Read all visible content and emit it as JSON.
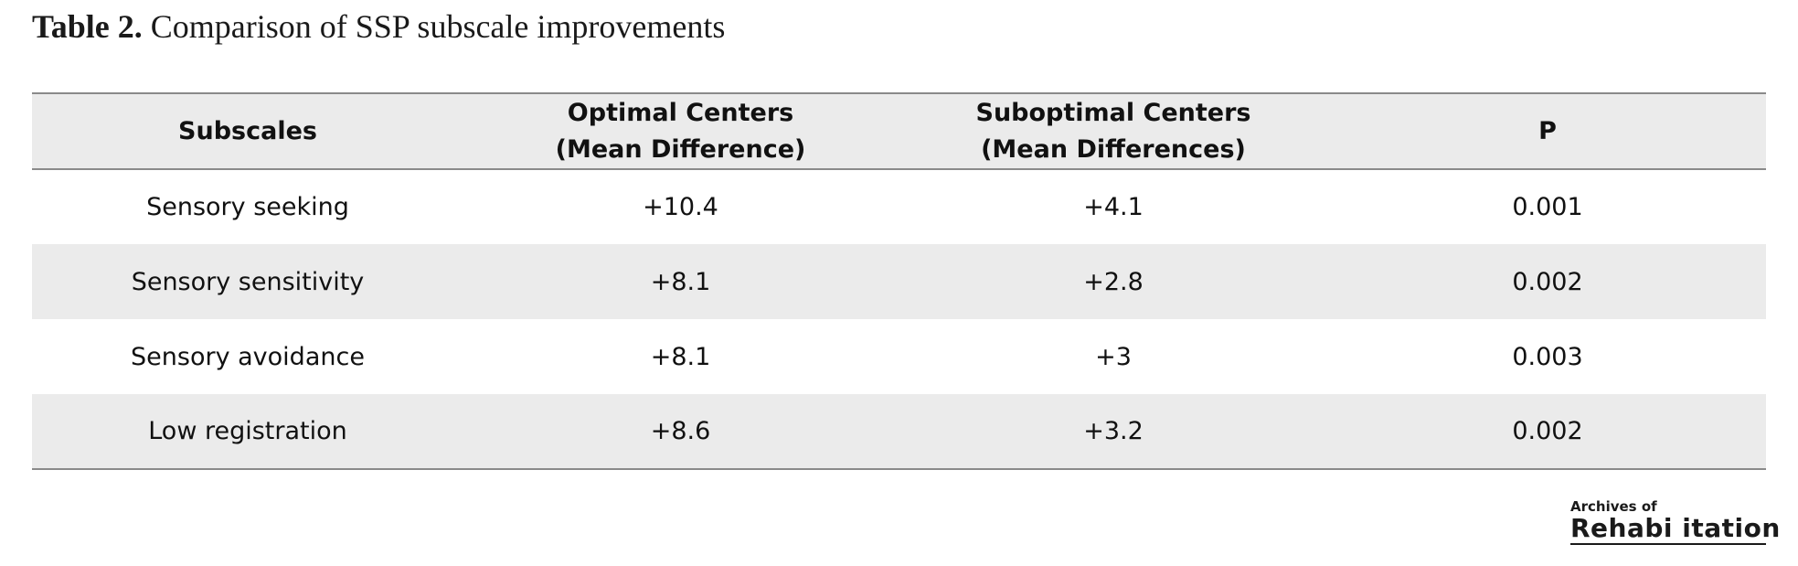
{
  "caption": {
    "label": "Table 2.",
    "title": "Comparison of SSP subscale improvements"
  },
  "table": {
    "headers": [
      {
        "line1": "Subscales",
        "line2": ""
      },
      {
        "line1": "Optimal Centers",
        "line2": "(Mean Difference)"
      },
      {
        "line1": "Suboptimal Centers",
        "line2": "(Mean Differences)"
      },
      {
        "line1": "P",
        "line2": ""
      }
    ],
    "rows": [
      {
        "subscale": "Sensory seeking",
        "optimal": "+10.4",
        "suboptimal": "+4.1",
        "p": "0.001"
      },
      {
        "subscale": "Sensory sensitivity",
        "optimal": "+8.1",
        "suboptimal": "+2.8",
        "p": "0.002"
      },
      {
        "subscale": "Sensory avoidance",
        "optimal": "+8.1",
        "suboptimal": "+3",
        "p": "0.003"
      },
      {
        "subscale": "Low registration",
        "optimal": "+8.6",
        "suboptimal": "+3.2",
        "p": "0.002"
      }
    ]
  },
  "logo": {
    "small_text": "Archives of",
    "big_text": "Rehabi itation"
  },
  "colors": {
    "header_bg": "#ebebeb",
    "shaded_row_bg": "#ebebeb",
    "rule": "#8a8a8a",
    "text": "#111111"
  }
}
